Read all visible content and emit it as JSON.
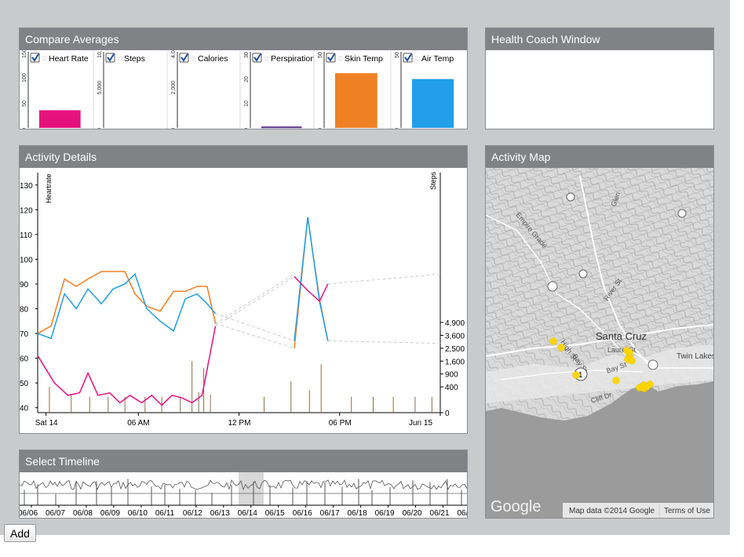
{
  "compare": {
    "title": "Compare Averages",
    "metrics": [
      {
        "label": "Heart Rate",
        "icon": "heart-icon",
        "checked": true,
        "ticks": [
          "150",
          "100",
          "50",
          "0"
        ],
        "value": 45,
        "max": 150,
        "color": "#e5127d"
      },
      {
        "label": "Steps",
        "icon": "footprints-icon",
        "checked": true,
        "ticks": [
          "10,000",
          "5,000",
          "0"
        ],
        "value": 0,
        "max": 15000,
        "color": "#444444"
      },
      {
        "label": "Calories",
        "icon": "flame-icon",
        "checked": true,
        "ticks": [
          "4,000",
          "2,000",
          "0"
        ],
        "value": 0,
        "max": 6000,
        "color": "#444444"
      },
      {
        "label": "Perspiration",
        "icon": "droplet-icon",
        "checked": true,
        "ticks": [
          "30",
          "20",
          "10",
          "0"
        ],
        "value": 0.7,
        "max": 30,
        "color": "#5a2b8a"
      },
      {
        "label": "Skin Temp",
        "icon": "thermometer-icon",
        "checked": true,
        "ticks": [
          "50",
          "0"
        ],
        "value": 93,
        "max": 100,
        "color": "#f08024"
      },
      {
        "label": "Air Temp",
        "icon": "thermometer-icon",
        "checked": true,
        "ticks": [
          "50",
          "0"
        ],
        "value": 83,
        "max": 100,
        "color": "#229fe8"
      }
    ]
  },
  "coach": {
    "title": "Health Coach Window"
  },
  "details": {
    "title": "Activity Details",
    "left_axis_title": "Heartrate",
    "right_axis_title": "Steps",
    "x_ticks": [
      "Sat 14",
      "06 AM",
      "12 PM",
      "06 PM",
      "Jun 15"
    ],
    "left_ticks": [
      "130",
      "120",
      "110",
      "100",
      "90",
      "80",
      "70",
      "60",
      "50",
      "40"
    ],
    "right_ticks": [
      "4,900",
      "3,600",
      "2,500",
      "1,600",
      "900",
      "400",
      "0"
    ]
  },
  "chart_data": {
    "type": "line",
    "x_unit": "hours since Sat 14 00:00",
    "xlim": [
      0,
      24
    ],
    "ylim": [
      38,
      135
    ],
    "series": [
      {
        "color": "#f08024",
        "x": [
          0,
          0.8,
          1.6,
          2.3,
          3,
          3.8,
          4.5,
          5.2,
          5.8,
          6.5,
          7.3,
          8.1,
          8.8,
          9.5,
          10.1,
          10.6,
          11.1,
          11.4,
          15.3,
          16.1,
          16.8,
          17.3
        ],
        "y": [
          70,
          73,
          92,
          89,
          92,
          95,
          95,
          95,
          86,
          81,
          79,
          87,
          87,
          89,
          89,
          74,
          null,
          null,
          64,
          117,
          84,
          67
        ]
      },
      {
        "color": "#229fe8",
        "x": [
          0,
          0.8,
          1.6,
          2.3,
          3,
          3.8,
          4.5,
          5.2,
          5.8,
          6.5,
          7.3,
          8.1,
          8.8,
          9.5,
          10.1,
          10.6,
          15.3,
          16.1,
          16.8,
          17.3
        ],
        "y": [
          70,
          68,
          86,
          80,
          88,
          82,
          88,
          90,
          94,
          80,
          75,
          71,
          84,
          86,
          82,
          78,
          67,
          117,
          83,
          67
        ]
      },
      {
        "color": "#e5127d",
        "x": [
          0,
          1,
          1.8,
          2.5,
          3,
          3.6,
          4.3,
          4.9,
          5.5,
          6.2,
          6.8,
          7.4,
          8,
          8.6,
          9.2,
          9.8,
          10.6,
          15.3,
          16,
          16.8,
          17.3
        ],
        "y": [
          61,
          50,
          45,
          46,
          54,
          45,
          46,
          42,
          45,
          42,
          45,
          41,
          45,
          44,
          42,
          45,
          73,
          93,
          88,
          83,
          90
        ]
      }
    ],
    "steps_bars": {
      "x": [
        0.7,
        2.0,
        3.1,
        4.2,
        5.2,
        6.4,
        7.4,
        8.5,
        9.2,
        9.6,
        9.9,
        10.3,
        13.5,
        15.1,
        16.2,
        16.9,
        18.7,
        20.0,
        21.2,
        22.5,
        23.5
      ],
      "y": [
        400,
        200,
        150,
        150,
        150,
        150,
        150,
        150,
        1600,
        250,
        1200,
        200,
        150,
        600,
        300,
        1400,
        150,
        150,
        150,
        150,
        150
      ]
    }
  },
  "timeline": {
    "title": "Select Timeline",
    "dates": [
      "06/06",
      "06/07",
      "06/08",
      "06/09",
      "06/10",
      "06/11",
      "06/12",
      "06/13",
      "06/14",
      "06/15",
      "06/16",
      "06/17",
      "06/18",
      "06/19",
      "06/20",
      "06/21",
      "06/22"
    ]
  },
  "map": {
    "title": "Activity Map",
    "city_label": "Santa Cruz",
    "town_label": "Twin Lakes",
    "route_shield": "1",
    "street_labels": [
      "Empire Grade",
      "River St",
      "High St",
      "Bay St",
      "Laurel St",
      "Bay St",
      "Cliff Dr",
      "Glen"
    ],
    "google_logo": "Google",
    "map_data": "Map data ©2014 Google",
    "terms": "Terms of Use",
    "marker_color": "#ffd600"
  },
  "add_label": "Add"
}
